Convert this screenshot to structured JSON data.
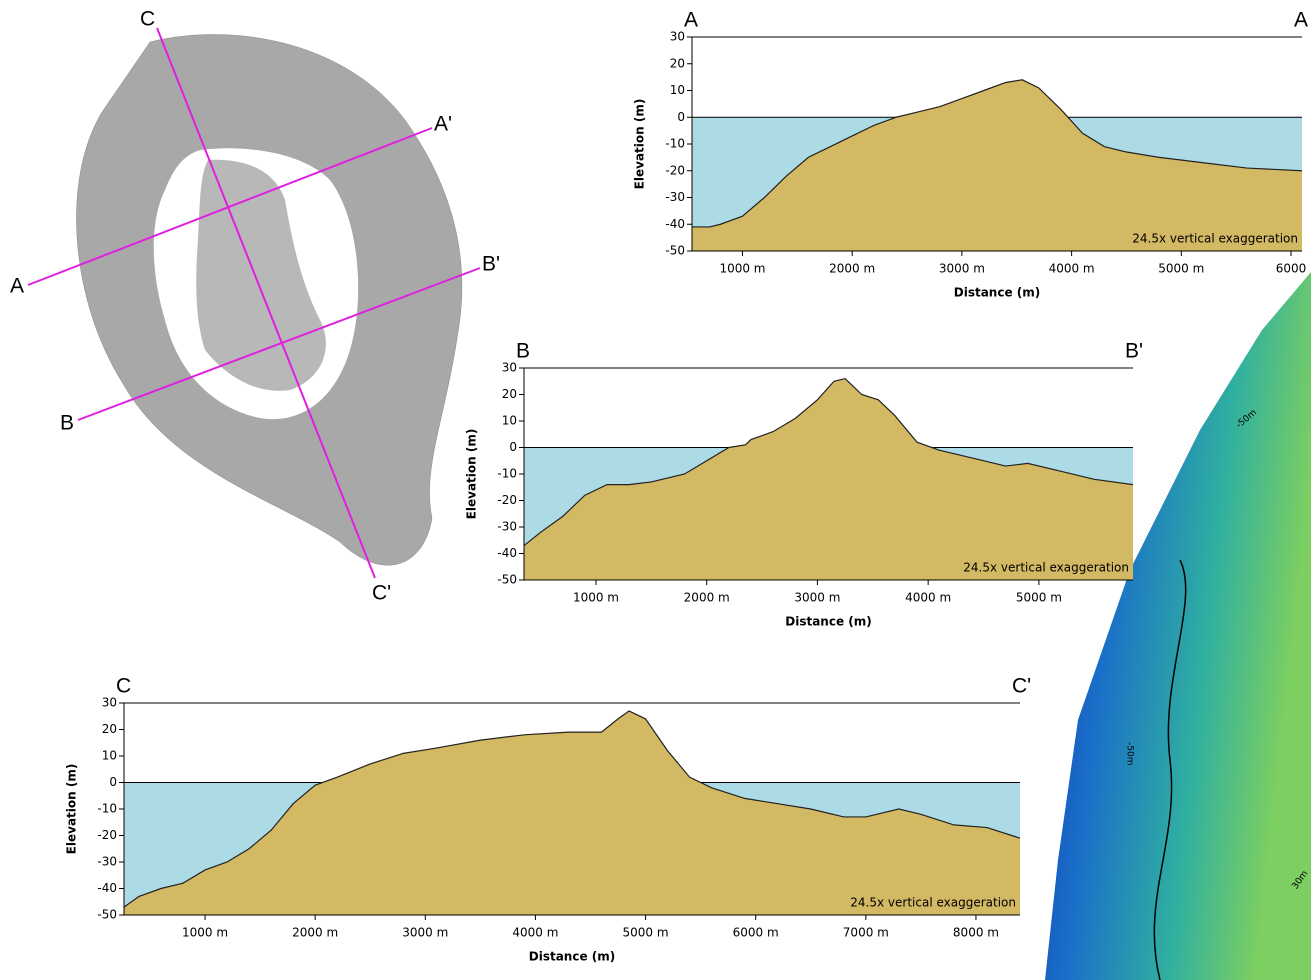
{
  "chart_data": [
    {
      "type": "area",
      "start_label": "A",
      "end_label": "A",
      "xlabel": "Distance (m)",
      "ylabel": "Elevation (m)",
      "annotation": "24.5x vertical exaggeration",
      "water_color": "#acdbe6",
      "land_color": "#d3b964",
      "x": [
        540,
        700,
        800,
        1000,
        1200,
        1400,
        1600,
        1800,
        2000,
        2200,
        2400,
        2600,
        2800,
        3000,
        3200,
        3400,
        3550,
        3700,
        3900,
        4100,
        4300,
        4500,
        4800,
        5200,
        5600,
        6100
      ],
      "values": [
        -41,
        -41,
        -40,
        -37,
        -30,
        -22,
        -15,
        -11,
        -7,
        -3,
        0,
        2,
        4,
        7,
        10,
        13,
        14,
        11,
        3,
        -6,
        -11,
        -13,
        -15,
        -17,
        -19,
        -20
      ],
      "xlim": [
        540,
        6100
      ],
      "ylim": [
        -50,
        30
      ],
      "xticks": [
        {
          "value": 1000,
          "label": "1000 m"
        },
        {
          "value": 2000,
          "label": "2000 m"
        },
        {
          "value": 3000,
          "label": "3000 m"
        },
        {
          "value": 4000,
          "label": "4000 m"
        },
        {
          "value": 5000,
          "label": "5000 m"
        },
        {
          "value": 6000,
          "label": "6000"
        }
      ],
      "yticks": [
        -50,
        -40,
        -30,
        -20,
        -10,
        0,
        10,
        20,
        30
      ]
    },
    {
      "type": "area",
      "start_label": "B",
      "end_label": "B'",
      "xlabel": "Distance (m)",
      "ylabel": "Elevation (m)",
      "annotation": "24.5x vertical exaggeration",
      "water_color": "#acdbe6",
      "land_color": "#d3b964",
      "x": [
        350,
        500,
        700,
        900,
        1100,
        1300,
        1500,
        1800,
        2000,
        2200,
        2350,
        2400,
        2600,
        2800,
        3000,
        3150,
        3250,
        3400,
        3550,
        3700,
        3900,
        4100,
        4400,
        4700,
        4900,
        5200,
        5500,
        5850
      ],
      "values": [
        -37,
        -32,
        -26,
        -18,
        -14,
        -14,
        -13,
        -10,
        -5,
        0,
        1,
        3,
        6,
        11,
        18,
        25,
        26,
        20,
        18,
        12,
        2,
        -1,
        -4,
        -7,
        -6,
        -9,
        -12,
        -14
      ],
      "xlim": [
        350,
        5850
      ],
      "ylim": [
        -50,
        30
      ],
      "xticks": [
        {
          "value": 1000,
          "label": "1000 m"
        },
        {
          "value": 2000,
          "label": "2000 m"
        },
        {
          "value": 3000,
          "label": "3000 m"
        },
        {
          "value": 4000,
          "label": "4000 m"
        },
        {
          "value": 5000,
          "label": "5000 m"
        }
      ],
      "yticks": [
        -50,
        -40,
        -30,
        -20,
        -10,
        0,
        10,
        20,
        30
      ]
    },
    {
      "type": "area",
      "start_label": "C",
      "end_label": "C'",
      "xlabel": "Distance (m)",
      "ylabel": "Elevation (m)",
      "annotation": "24.5x vertical exaggeration",
      "water_color": "#acdbe6",
      "land_color": "#d3b964",
      "x": [
        264,
        400,
        600,
        800,
        1000,
        1200,
        1400,
        1600,
        1800,
        2000,
        2200,
        2500,
        2800,
        3100,
        3500,
        3900,
        4300,
        4600,
        4750,
        4850,
        5000,
        5200,
        5400,
        5600,
        5900,
        6200,
        6500,
        6800,
        7000,
        7300,
        7500,
        7800,
        8100,
        8400
      ],
      "values": [
        -47,
        -43,
        -40,
        -38,
        -33,
        -30,
        -25,
        -18,
        -8,
        -1,
        2,
        7,
        11,
        13,
        16,
        18,
        19,
        19,
        24,
        27,
        24,
        12,
        2,
        -2,
        -6,
        -8,
        -10,
        -13,
        -13,
        -10,
        -12,
        -16,
        -17,
        -21
      ],
      "xlim": [
        264,
        8400
      ],
      "ylim": [
        -50,
        30
      ],
      "xticks": [
        {
          "value": 1000,
          "label": "1000 m"
        },
        {
          "value": 2000,
          "label": "2000 m"
        },
        {
          "value": 3000,
          "label": "3000 m"
        },
        {
          "value": 4000,
          "label": "4000 m"
        },
        {
          "value": 5000,
          "label": "5000 m"
        },
        {
          "value": 6000,
          "label": "6000 m"
        },
        {
          "value": 7000,
          "label": "7000 m"
        },
        {
          "value": 8000,
          "label": "8000 m"
        }
      ],
      "yticks": [
        -50,
        -40,
        -30,
        -20,
        -10,
        0,
        10,
        20,
        30
      ]
    }
  ],
  "map": {
    "labels": [
      "C",
      "A'",
      "A",
      "B'",
      "B",
      "C'"
    ]
  },
  "bathymetry": {
    "labels": [
      "-50m",
      "-50m",
      "30m"
    ]
  }
}
